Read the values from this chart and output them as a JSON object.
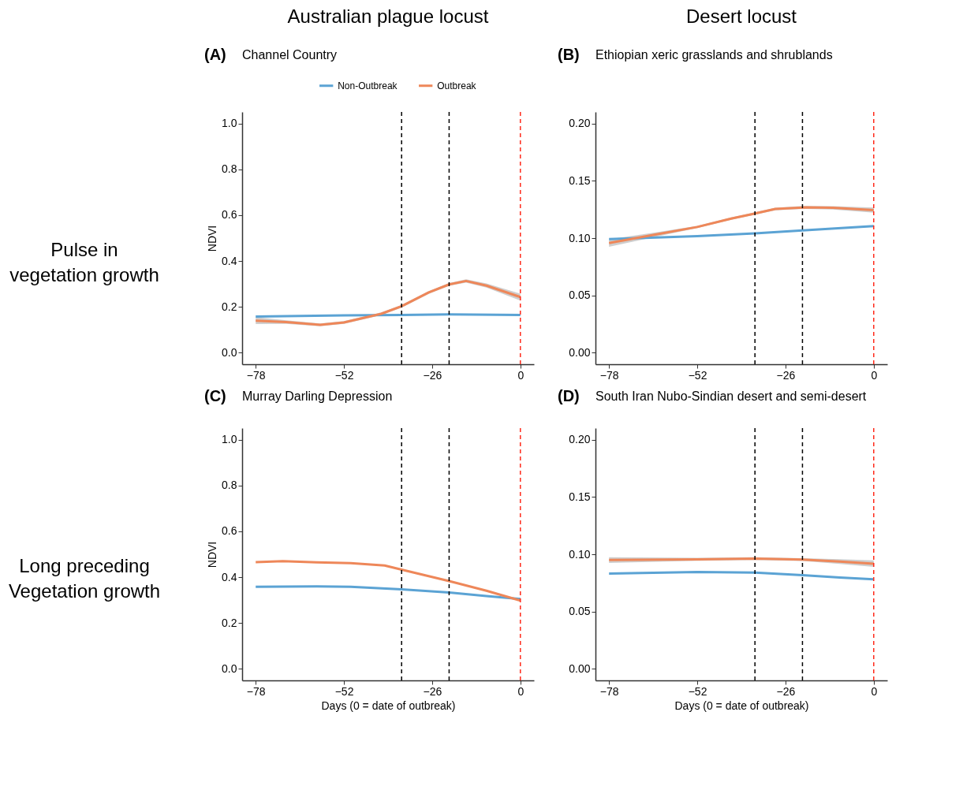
{
  "chart_data": [
    {
      "type": "line",
      "title": "Australian plague locust",
      "subtitle": "Channel Country",
      "ylabel": "NDVI",
      "annotations": [
        "(A)",
        "Pulse in vegetation growth"
      ],
      "legend": "top",
      "xlim": [
        -82,
        4
      ],
      "xticks": [
        -78,
        -52,
        -26,
        0
      ],
      "ylim": [
        -0.05,
        1.05
      ],
      "yticks": [
        {
          "value": 0,
          "label": "0.0"
        },
        0.2,
        0.4,
        0.6,
        0.8,
        {
          "value": 1,
          "label": "1.0"
        }
      ],
      "series": [
        {
          "name": "Non-Outbreak",
          "color": "#5ba3d4",
          "x": [
            -78,
            -52,
            -35,
            -21,
            0
          ],
          "values": [
            0.158,
            0.163,
            0.165,
            0.167,
            0.165
          ]
        },
        {
          "name": "Outbreak",
          "color": "#ee8759",
          "x": [
            -78,
            -69,
            -59,
            -52,
            -41,
            -35,
            -27,
            -21,
            -16,
            -10,
            0
          ],
          "values": [
            0.14,
            0.134,
            0.122,
            0.132,
            0.17,
            0.203,
            0.263,
            0.298,
            0.313,
            0.293,
            0.243
          ],
          "lower": [
            0.125,
            0.126,
            0.116,
            0.126,
            0.164,
            0.197,
            0.257,
            0.292,
            0.306,
            0.284,
            0.228
          ],
          "upper": [
            0.155,
            0.142,
            0.128,
            0.138,
            0.176,
            0.209,
            0.269,
            0.304,
            0.32,
            0.302,
            0.258
          ]
        }
      ],
      "ref_lines": [
        {
          "axis": "x",
          "value": -35,
          "color": "#000000",
          "line_style": "dashed"
        },
        {
          "axis": "x",
          "value": -21,
          "color": "#000000",
          "line_style": "dashed"
        },
        {
          "axis": "x",
          "value": 0,
          "color": "#ff2a1a",
          "line_style": "dashed"
        }
      ]
    },
    {
      "type": "line",
      "title": "Desert locust",
      "subtitle": "Ethiopian xeric grasslands and shrublands",
      "annotations": [
        "(B)"
      ],
      "xlim": [
        -82,
        4
      ],
      "xticks": [
        -78,
        -52,
        -26,
        0
      ],
      "ylim": [
        -0.01,
        0.21
      ],
      "yticks": [
        {
          "value": 0,
          "label": "0.00"
        },
        0.05,
        {
          "value": 0.1,
          "label": "0.10"
        },
        0.15,
        {
          "value": 0.2,
          "label": "0.20"
        }
      ],
      "series": [
        {
          "color": "#5ba3d4",
          "x": [
            -78,
            -52,
            -35,
            -21,
            0
          ],
          "values": [
            0.0991,
            0.1017,
            0.1041,
            0.1067,
            0.1105
          ]
        },
        {
          "color": "#ee8759",
          "x": [
            -78,
            -65,
            -52,
            -42,
            -36,
            -29,
            -20,
            -12,
            0
          ],
          "values": [
            0.0957,
            0.1027,
            0.1097,
            0.117,
            0.1208,
            0.1254,
            0.1268,
            0.1264,
            0.1244
          ],
          "lower": [
            0.0925,
            0.1007,
            0.1087,
            0.116,
            0.1198,
            0.1243,
            0.1255,
            0.125,
            0.1222
          ],
          "upper": [
            0.0989,
            0.1047,
            0.1107,
            0.118,
            0.1218,
            0.1265,
            0.1281,
            0.1278,
            0.1266
          ]
        }
      ],
      "ref_lines": [
        {
          "axis": "x",
          "value": -35,
          "color": "#000000",
          "line_style": "dashed"
        },
        {
          "axis": "x",
          "value": -21,
          "color": "#000000",
          "line_style": "dashed"
        },
        {
          "axis": "x",
          "value": 0,
          "color": "#ff2a1a",
          "line_style": "dashed"
        }
      ]
    },
    {
      "type": "line",
      "subtitle": "Murray Darling Depression",
      "xlabel": "Days (0 = date of outbreak)",
      "ylabel": "NDVI",
      "annotations": [
        "(C)",
        "Long preceding Vegetation growth"
      ],
      "xlim": [
        -82,
        4
      ],
      "xticks": [
        -78,
        -52,
        -26,
        0
      ],
      "ylim": [
        -0.05,
        1.05
      ],
      "yticks": [
        {
          "value": 0,
          "label": "0.0"
        },
        0.2,
        0.4,
        0.6,
        0.8,
        {
          "value": 1,
          "label": "1.0"
        }
      ],
      "series": [
        {
          "color": "#5ba3d4",
          "x": [
            -78,
            -60,
            -50,
            -35,
            -21,
            -10,
            0
          ],
          "values": [
            0.358,
            0.36,
            0.358,
            0.347,
            0.333,
            0.318,
            0.305
          ]
        },
        {
          "color": "#ee8759",
          "x": [
            -78,
            -70,
            -60,
            -50,
            -40,
            -35,
            -28,
            -21,
            -10,
            0
          ],
          "values": [
            0.466,
            0.47,
            0.465,
            0.461,
            0.451,
            0.433,
            0.408,
            0.383,
            0.341,
            0.298
          ]
        }
      ],
      "ref_lines": [
        {
          "axis": "x",
          "value": -35,
          "color": "#000000",
          "line_style": "dashed"
        },
        {
          "axis": "x",
          "value": -21,
          "color": "#000000",
          "line_style": "dashed"
        },
        {
          "axis": "x",
          "value": 0,
          "color": "#ff2a1a",
          "line_style": "dashed"
        }
      ]
    },
    {
      "type": "line",
      "subtitle": "South Iran Nubo-Sindian desert and semi-desert",
      "xlabel": "Days (0 = date of outbreak)",
      "annotations": [
        "(D)"
      ],
      "xlim": [
        -82,
        4
      ],
      "xticks": [
        -78,
        -52,
        -26,
        0
      ],
      "ylim": [
        -0.01,
        0.21
      ],
      "yticks": [
        {
          "value": 0,
          "label": "0.00"
        },
        0.05,
        {
          "value": 0.1,
          "label": "0.10"
        },
        0.15,
        {
          "value": 0.2,
          "label": "0.20"
        }
      ],
      "series": [
        {
          "color": "#5ba3d4",
          "x": [
            -78,
            -52,
            -35,
            -21,
            -10,
            0
          ],
          "values": [
            0.0832,
            0.0846,
            0.084,
            0.0818,
            0.0798,
            0.0782
          ]
        },
        {
          "color": "#ee8759",
          "x": [
            -78,
            -52,
            -35,
            -21,
            -10,
            0
          ],
          "values": [
            0.095,
            0.0956,
            0.0962,
            0.0954,
            0.0936,
            0.0918
          ],
          "lower": [
            0.0925,
            0.0943,
            0.095,
            0.0942,
            0.0915,
            0.089
          ],
          "upper": [
            0.0975,
            0.0969,
            0.0974,
            0.0966,
            0.0957,
            0.0946
          ]
        }
      ],
      "ref_lines": [
        {
          "axis": "x",
          "value": -35,
          "color": "#000000",
          "line_style": "dashed"
        },
        {
          "axis": "x",
          "value": -21,
          "color": "#000000",
          "line_style": "dashed"
        },
        {
          "axis": "x",
          "value": 0,
          "color": "#ff2a1a",
          "line_style": "dashed"
        }
      ]
    }
  ]
}
